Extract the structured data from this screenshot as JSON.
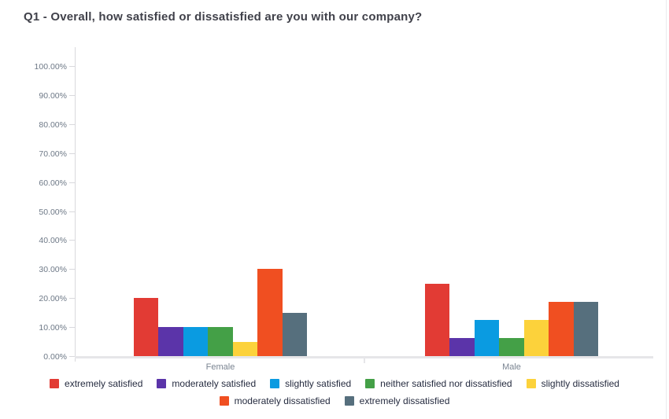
{
  "title": "Q1 - Overall, how satisfied or dissatisfied are you with our company?",
  "chart_data": {
    "type": "bar",
    "categories": [
      "Female",
      "Male"
    ],
    "series": [
      {
        "name": "extremely satisfied",
        "color": "#E23B34",
        "values": [
          20,
          25
        ]
      },
      {
        "name": "moderately satisfied",
        "color": "#5B34A9",
        "values": [
          10,
          6.25
        ]
      },
      {
        "name": "slightly satisfied",
        "color": "#0A9BE1",
        "values": [
          10,
          12.5
        ]
      },
      {
        "name": "neither satisfied nor dissatisfied",
        "color": "#44A047",
        "values": [
          10,
          6.25
        ]
      },
      {
        "name": "slightly dissatisfied",
        "color": "#FCD23B",
        "values": [
          5,
          12.5
        ]
      },
      {
        "name": "moderately dissatisfied",
        "color": "#F04F21",
        "values": [
          30,
          18.75
        ]
      },
      {
        "name": "extremely dissatisfied",
        "color": "#566F7D",
        "values": [
          15,
          18.75
        ]
      }
    ],
    "xlabel": "",
    "ylabel": "",
    "ylim": [
      0,
      100
    ],
    "y_tick_step": 10,
    "y_tick_labels": [
      "0.00%",
      "10.00%",
      "20.00%",
      "30.00%",
      "40.00%",
      "50.00%",
      "60.00%",
      "70.00%",
      "80.00%",
      "90.00%",
      "100.00%"
    ],
    "grid": false,
    "legend_position": "bottom",
    "legend_rows": [
      5,
      2
    ]
  }
}
